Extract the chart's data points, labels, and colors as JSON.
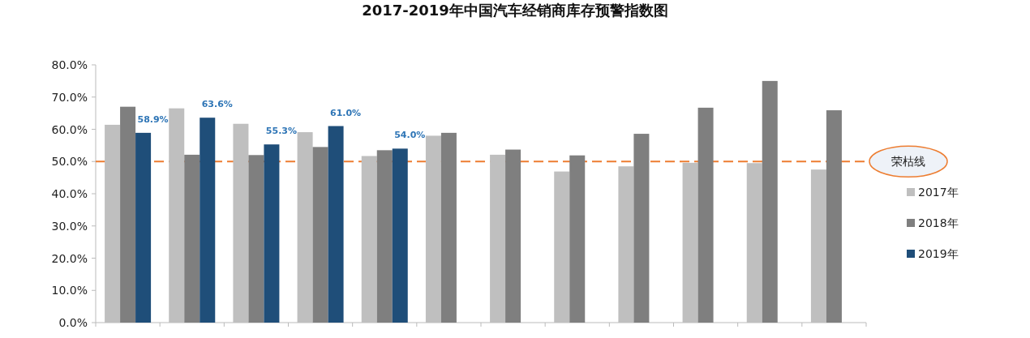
{
  "chart_data": {
    "type": "bar",
    "title": "2017-2019年中国汽车经销商库存预警指数图",
    "categories": [
      null,
      null,
      null,
      null,
      null,
      null,
      null,
      null,
      null,
      null,
      null,
      null
    ],
    "series": [
      {
        "name": "2017年",
        "color": "#bfbfbf",
        "values": [
          61.4,
          66.5,
          61.7,
          59.1,
          51.7,
          58.0,
          52.1,
          46.9,
          48.5,
          49.6,
          49.5,
          47.5
        ]
      },
      {
        "name": "2018年",
        "color": "#7f7f7f",
        "values": [
          67.0,
          52.1,
          52.0,
          54.5,
          53.5,
          58.9,
          53.7,
          51.9,
          58.6,
          66.7,
          75.0,
          65.9
        ]
      },
      {
        "name": "2019年",
        "color": "#1f4e79",
        "values": [
          58.9,
          63.6,
          55.3,
          61.0,
          54.0,
          null,
          null,
          null,
          null,
          null,
          null,
          null
        ],
        "value_labels": [
          "58.9%",
          "63.6%",
          "55.3%",
          "61.0%",
          "54.0%",
          null,
          null,
          null,
          null,
          null,
          null,
          null
        ]
      }
    ],
    "ylim": [
      0,
      80
    ],
    "yticks": [
      {
        "value": 0,
        "label": "0.0%"
      },
      {
        "value": 10,
        "label": "10.0%"
      },
      {
        "value": 20,
        "label": "20.0%"
      },
      {
        "value": 30,
        "label": "30.0%"
      },
      {
        "value": 40,
        "label": "40.0%"
      },
      {
        "value": 50,
        "label": "50.0%"
      },
      {
        "value": 60,
        "label": "60.0%"
      },
      {
        "value": 70,
        "label": "70.0%"
      },
      {
        "value": 80,
        "label": "80.0%"
      }
    ],
    "ref_lines": [
      {
        "axis": "y",
        "value": 50,
        "label": "荣枯线",
        "color": "#ed7d31",
        "line_style": "dashed"
      }
    ],
    "legend": "right"
  }
}
